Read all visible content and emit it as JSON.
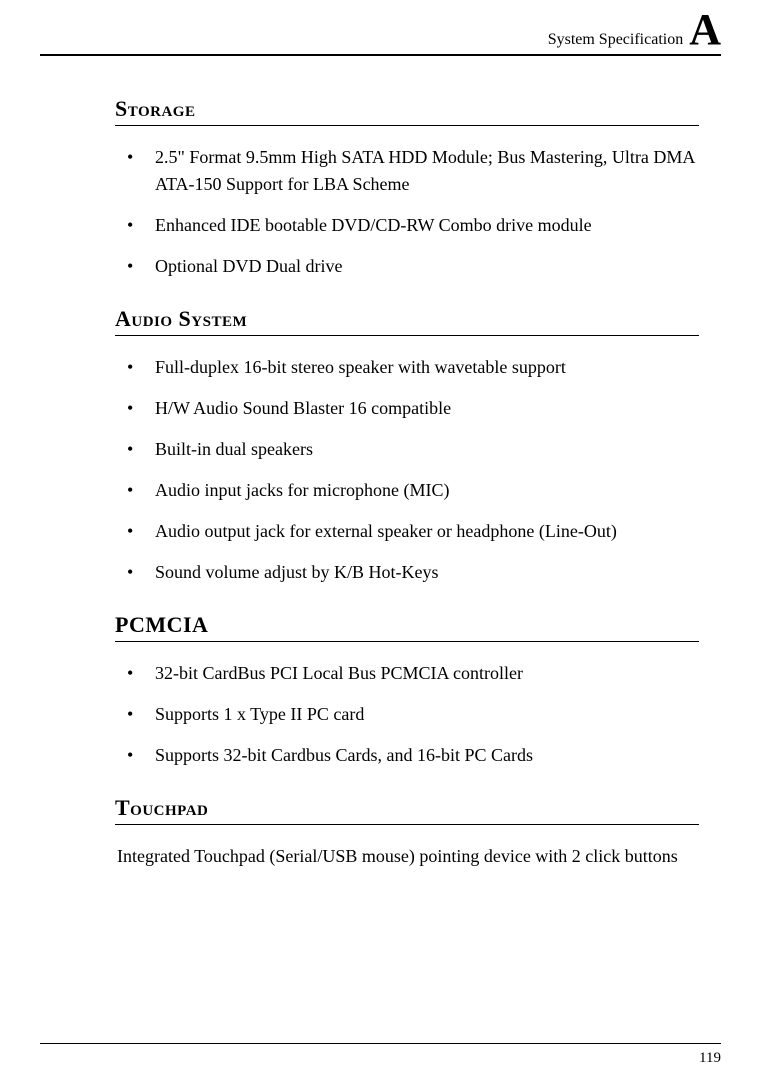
{
  "header": {
    "title": "System Specification",
    "letter": "A"
  },
  "sections": {
    "storage": {
      "title": "Storage",
      "items": [
        "2.5\" Format 9.5mm High SATA HDD Module; Bus Mastering, Ultra DMA ATA-150 Support for LBA Scheme",
        "Enhanced IDE bootable DVD/CD-RW Combo drive module",
        "Optional DVD Dual drive"
      ]
    },
    "audio": {
      "title": "Audio System",
      "items": [
        "Full-duplex 16-bit stereo speaker with wavetable support",
        "H/W Audio Sound Blaster 16 compatible",
        "Built-in dual speakers",
        "Audio input jacks for microphone (MIC)",
        "Audio output jack for external speaker or headphone (Line-Out)",
        "Sound volume adjust by K/B Hot-Keys"
      ]
    },
    "pcmcia": {
      "title": "PCMCIA",
      "items": [
        "32-bit CardBus PCI Local Bus PCMCIA controller",
        "Supports 1 x Type II PC card",
        "Supports 32-bit Cardbus Cards, and 16-bit PC Cards"
      ]
    },
    "touchpad": {
      "title": "Touchpad",
      "body": "Integrated Touchpad (Serial/USB mouse) pointing device with 2 click buttons"
    }
  },
  "footer": {
    "page_number": "119"
  }
}
